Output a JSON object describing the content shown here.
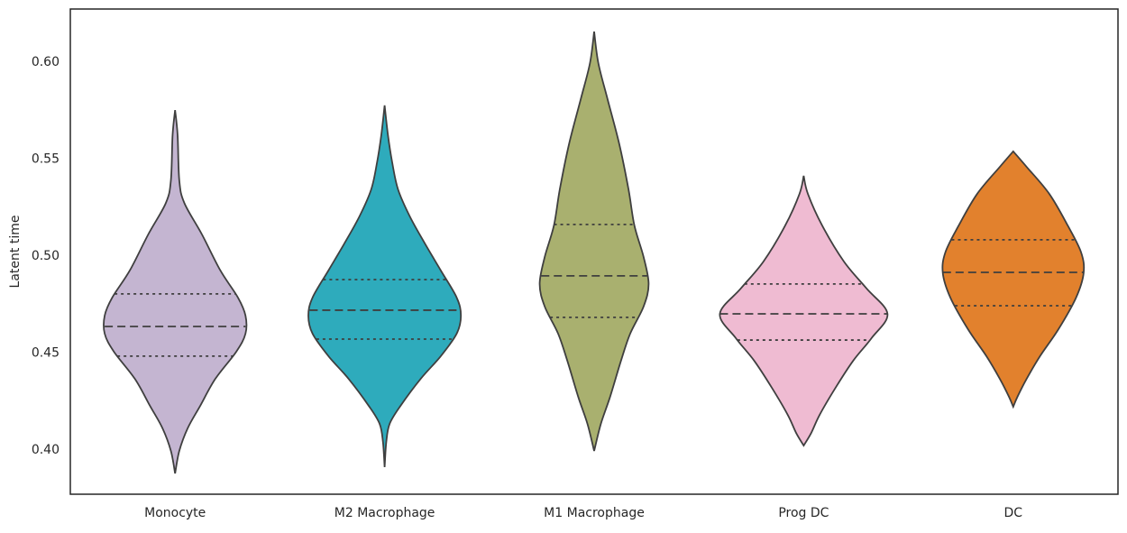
{
  "chart_data": {
    "type": "violin",
    "ylabel": "Latent time",
    "categories": [
      "Monocyte",
      "M2 Macrophage",
      "M1 Macrophage",
      "Prog DC",
      "DC"
    ],
    "ylim": [
      0.3772,
      0.6274
    ],
    "yticks": [
      {
        "value": 0.4,
        "label": "0.40"
      },
      {
        "value": 0.45,
        "label": "0.45"
      },
      {
        "value": 0.5,
        "label": "0.50"
      },
      {
        "value": 0.55,
        "label": "0.55"
      },
      {
        "value": 0.6,
        "label": "0.60"
      }
    ],
    "violins": [
      {
        "color": "#c4b5d1",
        "q1": 0.4484,
        "median": 0.4637,
        "q3": 0.4805,
        "y": [
          0.5753,
          0.5623,
          0.5391,
          0.5274,
          0.5112,
          0.4926,
          0.4786,
          0.4693,
          0.46,
          0.4507,
          0.4367,
          0.4228,
          0.4112,
          0.3995,
          0.3879
        ],
        "density": [
          0,
          0.03,
          0.05,
          0.11,
          0.32,
          0.54,
          0.75,
          0.84,
          0.84,
          0.73,
          0.48,
          0.3,
          0.15,
          0.05,
          0
        ]
      },
      {
        "color": "#2eabbc",
        "q1": 0.4572,
        "median": 0.4721,
        "q3": 0.4879,
        "y": [
          0.5777,
          0.5623,
          0.5484,
          0.5344,
          0.5205,
          0.5065,
          0.4926,
          0.4786,
          0.4693,
          0.46,
          0.4484,
          0.4367,
          0.4228,
          0.4135,
          0.4042,
          0.3912
        ],
        "density": [
          0,
          0.04,
          0.09,
          0.16,
          0.3,
          0.48,
          0.67,
          0.86,
          0.91,
          0.86,
          0.67,
          0.43,
          0.19,
          0.06,
          0.02,
          0
        ]
      },
      {
        "color": "#a9b06f",
        "q1": 0.4684,
        "median": 0.4898,
        "q3": 0.5163,
        "y": [
          0.6158,
          0.5995,
          0.5809,
          0.5577,
          0.5344,
          0.5158,
          0.4995,
          0.4856,
          0.474,
          0.46,
          0.446,
          0.4274,
          0.4135,
          0.3995
        ],
        "density": [
          0,
          0.05,
          0.16,
          0.3,
          0.41,
          0.48,
          0.59,
          0.65,
          0.59,
          0.43,
          0.32,
          0.19,
          0.08,
          0
        ]
      },
      {
        "color": "#efbbd2",
        "q1": 0.4567,
        "median": 0.4702,
        "q3": 0.4856,
        "y": [
          0.5414,
          0.5321,
          0.5158,
          0.4972,
          0.4833,
          0.4702,
          0.4577,
          0.446,
          0.4321,
          0.4181,
          0.4088,
          0.4023
        ],
        "density": [
          0,
          0.05,
          0.22,
          0.48,
          0.75,
          1,
          0.81,
          0.59,
          0.38,
          0.19,
          0.09,
          0
        ]
      },
      {
        "color": "#e2812d",
        "q1": 0.4744,
        "median": 0.4916,
        "q3": 0.5084,
        "y": [
          0.554,
          0.546,
          0.5321,
          0.5158,
          0.5019,
          0.4912,
          0.4786,
          0.4623,
          0.4484,
          0.4367,
          0.4274,
          0.4223
        ],
        "density": [
          0,
          0.16,
          0.43,
          0.65,
          0.81,
          0.84,
          0.75,
          0.54,
          0.32,
          0.16,
          0.05,
          0
        ]
      }
    ]
  }
}
